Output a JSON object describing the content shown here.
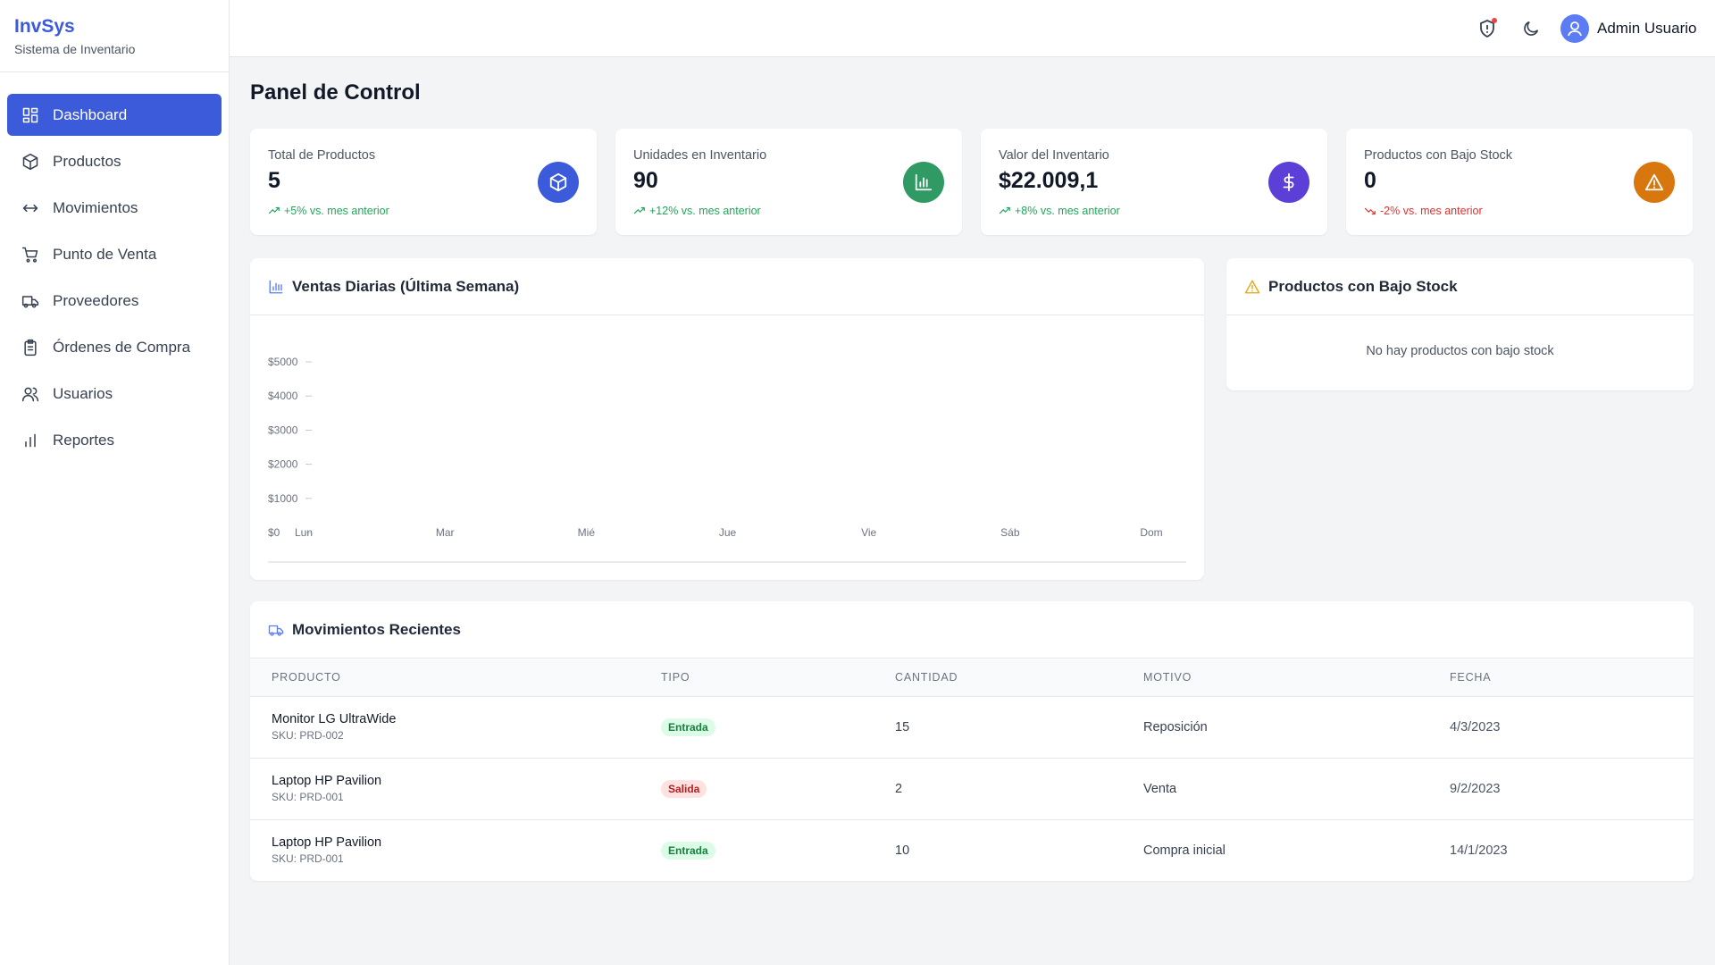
{
  "brand": {
    "name": "InvSys",
    "subtitle": "Sistema de Inventario"
  },
  "nav": [
    {
      "label": "Dashboard",
      "active": true
    },
    {
      "label": "Productos",
      "active": false
    },
    {
      "label": "Movimientos",
      "active": false
    },
    {
      "label": "Punto de Venta",
      "active": false
    },
    {
      "label": "Proveedores",
      "active": false
    },
    {
      "label": "Órdenes de Compra",
      "active": false
    },
    {
      "label": "Usuarios",
      "active": false
    },
    {
      "label": "Reportes",
      "active": false
    }
  ],
  "header": {
    "user": "Admin Usuario"
  },
  "page_title": "Panel de Control",
  "stats": [
    {
      "label": "Total de Productos",
      "value": 5,
      "change": "+5% vs. mes anterior",
      "trend": "up",
      "trend_color": "#22a559",
      "color": "#3b5bdb"
    },
    {
      "label": "Unidades en Inventario",
      "value": 90,
      "change": "+12% vs. mes anterior",
      "trend": "up",
      "trend_color": "#22a559",
      "color": "#2f9a63"
    },
    {
      "label": "Valor del Inventario",
      "value": "$22.009,1",
      "change": "+8% vs. mes anterior",
      "trend": "up",
      "trend_color": "#22a559",
      "color": "#5b3fd6"
    },
    {
      "label": "Productos con Bajo Stock",
      "value": 0,
      "change": "-2% vs. mes anterior",
      "trend": "down",
      "trend_color": "#e03131",
      "color": "#d9770f"
    }
  ],
  "sales_chart": {
    "title": "Ventas Diarias (Última Semana)",
    "categories": [
      "Lun",
      "Mar",
      "Mié",
      "Jue",
      "Vie",
      "Sáb",
      "Dom"
    ],
    "ylim": [
      0,
      5000
    ],
    "yticks": [
      {
        "value": 0,
        "label": "$0"
      },
      {
        "value": 1000,
        "label": "$1000"
      },
      {
        "value": 2000,
        "label": "$2000"
      },
      {
        "value": 3000,
        "label": "$3000"
      },
      {
        "value": 4000,
        "label": "$4000"
      },
      {
        "value": 5000,
        "label": "$5000"
      }
    ]
  },
  "low_stock": {
    "title": "Productos con Bajo Stock",
    "empty": "No hay productos con bajo stock"
  },
  "movements": {
    "title": "Movimientos Recientes",
    "columns": [
      "PRODUCTO",
      "TIPO",
      "CANTIDAD",
      "MOTIVO",
      "FECHA"
    ],
    "rows": [
      {
        "product": "Monitor LG UltraWide",
        "sku": "SKU: PRD-002",
        "type": "Entrada",
        "type_color": "#15803d",
        "type_bg": "#dcfce7",
        "quantity": 15,
        "reason": "Reposición",
        "date": "4/3/2023"
      },
      {
        "product": "Laptop HP Pavilion",
        "sku": "SKU: PRD-001",
        "type": "Salida",
        "type_color": "#b91c1c",
        "type_bg": "#fee2e2",
        "quantity": 2,
        "reason": "Venta",
        "date": "9/2/2023"
      },
      {
        "product": "Laptop HP Pavilion",
        "sku": "SKU: PRD-001",
        "type": "Entrada",
        "type_color": "#15803d",
        "type_bg": "#dcfce7",
        "quantity": 10,
        "reason": "Compra inicial",
        "date": "14/1/2023"
      }
    ]
  }
}
